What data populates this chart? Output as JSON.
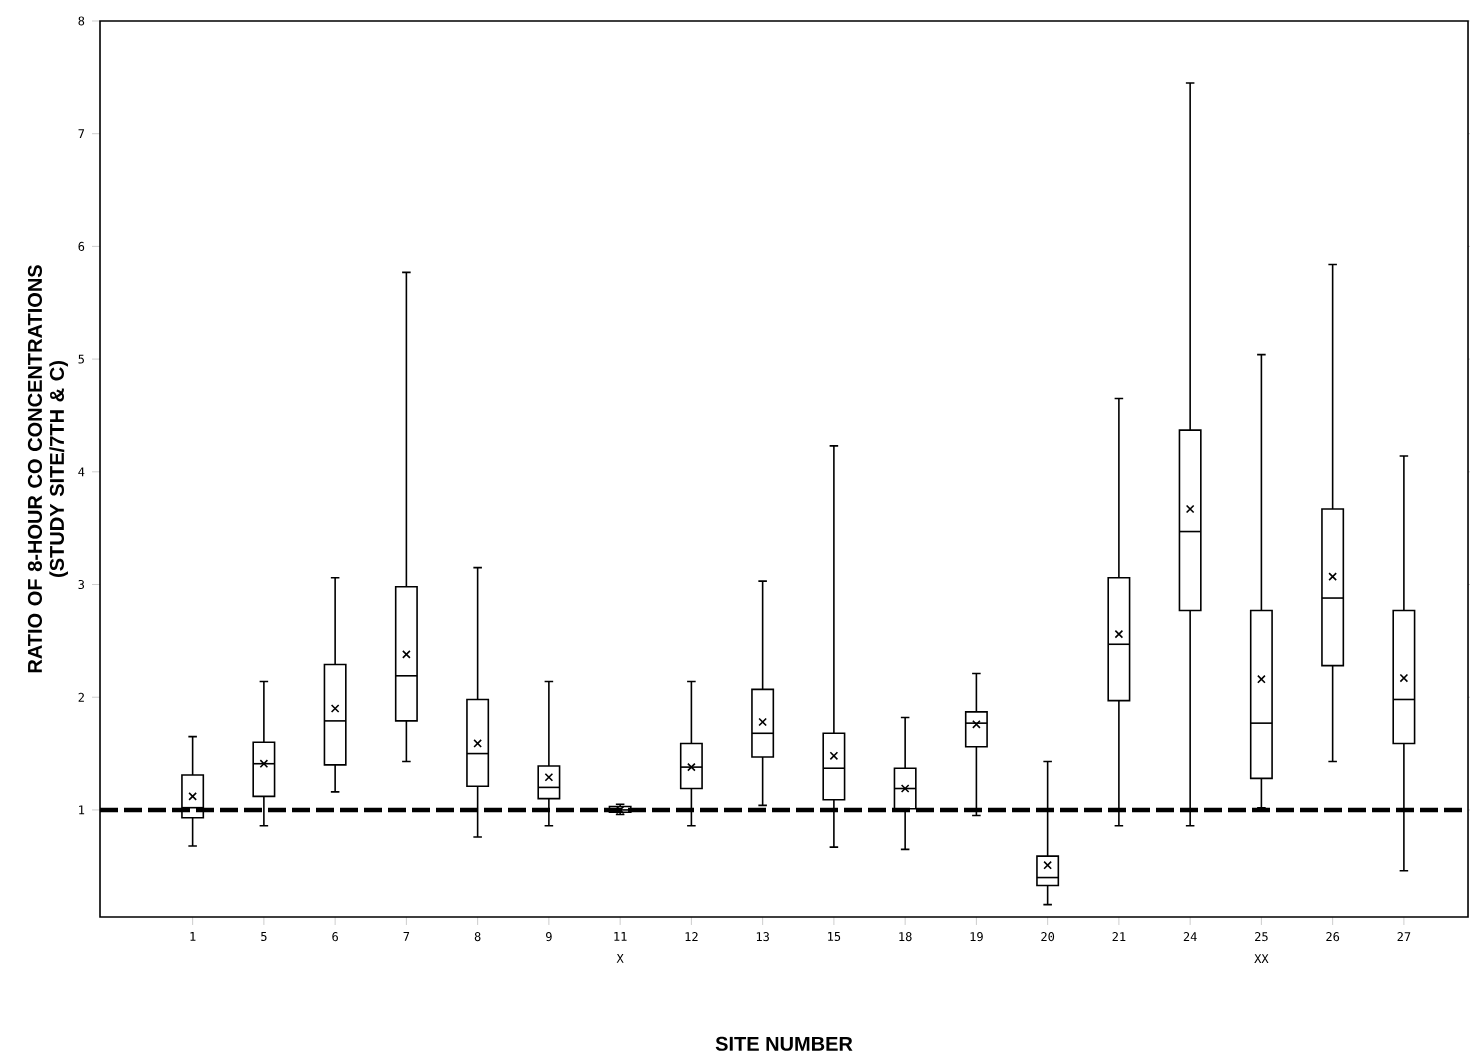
{
  "chart_data": {
    "type": "box",
    "xlabel": "SITE NUMBER",
    "ylabel": "RATIO OF 8-HOUR CO CONCENTRATIONS (STUDY SITE/7TH & C)",
    "categories": [
      "1",
      "5",
      "6",
      "7",
      "8",
      "9",
      "11 X",
      "12",
      "13",
      "15",
      "18",
      "19",
      "20",
      "21",
      "24",
      "25 XX",
      "26",
      "27"
    ],
    "boxes": [
      {
        "low": 0.68,
        "q1": 0.93,
        "median": 1.02,
        "q3": 1.31,
        "high": 1.65,
        "mean": 1.12
      },
      {
        "low": 0.86,
        "q1": 1.12,
        "median": 1.41,
        "q3": 1.6,
        "high": 2.14,
        "mean": 1.41
      },
      {
        "low": 1.16,
        "q1": 1.4,
        "median": 1.79,
        "q3": 2.29,
        "high": 3.06,
        "mean": 1.9
      },
      {
        "low": 1.43,
        "q1": 1.79,
        "median": 2.19,
        "q3": 2.98,
        "high": 5.77,
        "mean": 2.38
      },
      {
        "low": 0.76,
        "q1": 1.21,
        "median": 1.5,
        "q3": 1.98,
        "high": 3.15,
        "mean": 1.59
      },
      {
        "low": 0.86,
        "q1": 1.1,
        "median": 1.2,
        "q3": 1.39,
        "high": 2.14,
        "mean": 1.29
      },
      {
        "low": 0.96,
        "q1": 0.98,
        "median": 1.0,
        "q3": 1.03,
        "high": 1.05,
        "mean": 1.0
      },
      {
        "low": 0.86,
        "q1": 1.19,
        "median": 1.38,
        "q3": 1.59,
        "high": 2.14,
        "mean": 1.38
      },
      {
        "low": 1.04,
        "q1": 1.47,
        "median": 1.68,
        "q3": 2.07,
        "high": 3.03,
        "mean": 1.78
      },
      {
        "low": 0.67,
        "q1": 1.09,
        "median": 1.37,
        "q3": 1.68,
        "high": 4.23,
        "mean": 1.48
      },
      {
        "low": 0.65,
        "q1": 1.01,
        "median": 1.19,
        "q3": 1.37,
        "high": 1.82,
        "mean": 1.19
      },
      {
        "low": 0.95,
        "q1": 1.56,
        "median": 1.77,
        "q3": 1.87,
        "high": 2.21,
        "mean": 1.76
      },
      {
        "low": 0.16,
        "q1": 0.33,
        "median": 0.4,
        "q3": 0.59,
        "high": 1.43,
        "mean": 0.51
      },
      {
        "low": 0.86,
        "q1": 1.97,
        "median": 2.47,
        "q3": 3.06,
        "high": 4.65,
        "mean": 2.56
      },
      {
        "low": 0.86,
        "q1": 2.77,
        "median": 3.47,
        "q3": 4.37,
        "high": 7.45,
        "mean": 3.67
      },
      {
        "low": 1.02,
        "q1": 1.28,
        "median": 1.77,
        "q3": 2.77,
        "high": 5.04,
        "mean": 2.16
      },
      {
        "low": 1.43,
        "q1": 2.28,
        "median": 2.88,
        "q3": 3.67,
        "high": 5.84,
        "mean": 3.07
      },
      {
        "low": 0.46,
        "q1": 1.59,
        "median": 1.98,
        "q3": 2.77,
        "high": 4.14,
        "mean": 2.17
      }
    ],
    "color": "#000000",
    "ylim": [
      0.05,
      8
    ],
    "yticks": [
      1,
      2,
      3,
      4,
      5,
      6,
      7,
      8
    ],
    "ref_lines": [
      {
        "axis": "y",
        "value": 1,
        "line_style": "dashed"
      }
    ]
  }
}
